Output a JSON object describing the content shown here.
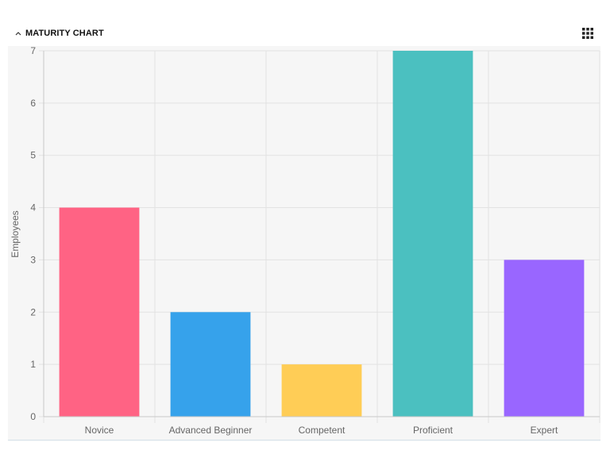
{
  "widget": {
    "title": "MATURITY CHART",
    "collapse_icon": "chevron-up-icon",
    "menu_icon": "grid-menu-icon"
  },
  "chart_data": {
    "type": "bar",
    "title": "",
    "xlabel": "",
    "ylabel": "Employees",
    "categories": [
      "Novice",
      "Advanced Beginner",
      "Competent",
      "Proficient",
      "Expert"
    ],
    "values": [
      4,
      2,
      1,
      7,
      3
    ],
    "colors": [
      "#ff6384",
      "#36a2eb",
      "#ffcd56",
      "#4bc0c0",
      "#9966ff"
    ],
    "ylim": [
      0,
      7
    ],
    "yticks": [
      0,
      1,
      2,
      3,
      4,
      5,
      6,
      7
    ],
    "grid": true,
    "legend": "none"
  }
}
